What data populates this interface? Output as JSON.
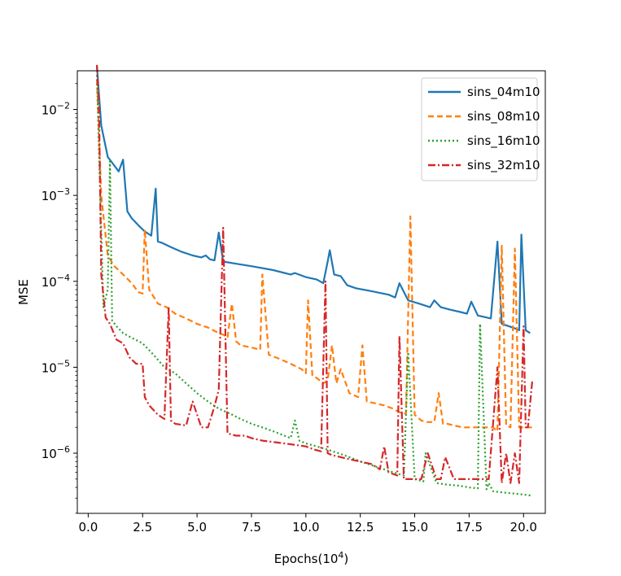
{
  "chart_data": {
    "type": "line",
    "title": "",
    "xlabel": "Epochs(10",
    "xlabel_sup": "4",
    "xlabel_close": ")",
    "ylabel": "MSE",
    "xlim": [
      -0.5,
      21.0
    ],
    "ylim_log10": [
      -6.7,
      -1.55
    ],
    "yscale": "log",
    "xticks": [
      0.0,
      2.5,
      5.0,
      7.5,
      10.0,
      12.5,
      15.0,
      17.5,
      20.0
    ],
    "xtick_labels": [
      "0.0",
      "2.5",
      "5.0",
      "7.5",
      "10.0",
      "12.5",
      "15.0",
      "17.5",
      "20.0"
    ],
    "ytick_exponents": [
      -6,
      -5,
      -4,
      -3,
      -2
    ],
    "ytick_base": "10",
    "ytick_labels": [
      "−6",
      "−5",
      "−4",
      "−3",
      "−2"
    ],
    "legend_position": "top-right",
    "series": [
      {
        "name": "sins_04m10",
        "color": "#1f77b4",
        "dash": "",
        "x": [
          0.4,
          0.6,
          0.9,
          1.1,
          1.4,
          1.6,
          1.8,
          2.0,
          2.3,
          2.6,
          2.9,
          3.1,
          3.2,
          3.4,
          3.8,
          4.3,
          4.8,
          5.2,
          5.4,
          5.6,
          5.8,
          6.0,
          6.2,
          6.8,
          7.5,
          8.5,
          9.3,
          9.5,
          10.0,
          10.5,
          10.8,
          11.0,
          11.1,
          11.3,
          11.6,
          11.9,
          12.3,
          13.0,
          13.8,
          14.1,
          14.3,
          14.7,
          15.2,
          15.7,
          15.9,
          16.2,
          16.6,
          17.1,
          17.4,
          17.6,
          17.9,
          18.5,
          18.8,
          19.0,
          19.5,
          19.8,
          19.9,
          20.1,
          20.3
        ],
        "values": [
          0.032,
          0.0065,
          0.0028,
          0.0024,
          0.0019,
          0.0026,
          0.00065,
          0.00054,
          0.00045,
          0.00038,
          0.00034,
          0.0012,
          0.00029,
          0.00028,
          0.00025,
          0.00022,
          0.0002,
          0.00019,
          0.0002,
          0.00018,
          0.000175,
          0.00037,
          0.00017,
          0.00016,
          0.00015,
          0.000135,
          0.00012,
          0.000125,
          0.000112,
          0.000105,
          9.5e-05,
          0.00017,
          0.00023,
          0.00012,
          0.000115,
          9e-05,
          8.3e-05,
          7.7e-05,
          7e-05,
          6.5e-05,
          9.5e-05,
          6e-05,
          5.5e-05,
          5e-05,
          6e-05,
          5e-05,
          4.7e-05,
          4.4e-05,
          4.2e-05,
          5.8e-05,
          4e-05,
          3.7e-05,
          0.00029,
          3.2e-05,
          2.9e-05,
          2.7e-05,
          0.00035,
          2.7e-05,
          2.5e-05
        ]
      },
      {
        "name": "sins_08m10",
        "color": "#ff7f0e",
        "dash": "7,4",
        "x": [
          0.4,
          0.6,
          0.9,
          1.2,
          1.6,
          2.0,
          2.3,
          2.5,
          2.6,
          2.8,
          3.2,
          3.6,
          4.0,
          4.5,
          5.0,
          5.5,
          6.0,
          6.2,
          6.4,
          6.6,
          6.8,
          7.0,
          7.5,
          7.9,
          8.0,
          8.3,
          8.8,
          9.3,
          9.8,
          10.0,
          10.1,
          10.3,
          10.5,
          10.8,
          11.0,
          11.2,
          11.4,
          11.6,
          12.0,
          12.4,
          12.6,
          12.8,
          13.2,
          13.6,
          14.0,
          14.3,
          14.6,
          14.8,
          15.0,
          15.3,
          15.6,
          15.9,
          16.1,
          16.3,
          16.5,
          16.8,
          17.2,
          17.7,
          18.0,
          18.4,
          18.6,
          18.8,
          19.0,
          19.2,
          19.4,
          19.6,
          19.8,
          20.0,
          20.2,
          20.4
        ],
        "values": [
          0.022,
          0.001,
          0.0002,
          0.00015,
          0.00012,
          9.5e-05,
          7.5e-05,
          7.2e-05,
          0.0004,
          8e-05,
          5.5e-05,
          5e-05,
          4.2e-05,
          3.7e-05,
          3.2e-05,
          2.9e-05,
          2.5e-05,
          2.4e-05,
          2.2e-05,
          5.5e-05,
          2e-05,
          1.8e-05,
          1.7e-05,
          1.6e-05,
          0.00012,
          1.4e-05,
          1.25e-05,
          1.1e-05,
          9.5e-06,
          8.5e-06,
          6e-05,
          8e-06,
          7.5e-06,
          6.5e-06,
          7e-06,
          1.8e-05,
          6.5e-06,
          9.5e-06,
          5e-06,
          4.5e-06,
          1.8e-05,
          4e-06,
          3.8e-06,
          3.6e-06,
          3.3e-06,
          3e-06,
          2.9e-06,
          0.00057,
          2.8e-06,
          2.4e-06,
          2.3e-06,
          2.3e-06,
          5e-06,
          2.2e-06,
          2.2e-06,
          2.1e-06,
          2e-06,
          2e-06,
          2e-06,
          2e-06,
          2e-06,
          1.8e-06,
          0.00026,
          2.1e-06,
          2e-06,
          0.00024,
          2e-06,
          2e-06,
          2e-06,
          2e-06
        ]
      },
      {
        "name": "sins_16m10",
        "color": "#2ca02c",
        "dash": "2,3",
        "x": [
          0.4,
          0.5,
          0.7,
          0.9,
          1.0,
          1.1,
          1.3,
          1.6,
          2.0,
          2.5,
          3.0,
          3.5,
          4.0,
          4.5,
          5.0,
          5.5,
          6.0,
          6.5,
          7.0,
          7.5,
          8.0,
          8.5,
          9.0,
          9.3,
          9.5,
          9.7,
          10.0,
          10.5,
          11.0,
          11.5,
          12.0,
          12.5,
          13.0,
          13.5,
          14.0,
          14.5,
          14.7,
          15.0,
          15.4,
          15.5,
          16.0,
          16.5,
          17.0,
          17.5,
          17.9,
          18.0,
          18.3,
          18.4,
          18.6,
          19.0,
          19.5,
          20.0,
          20.4
        ],
        "values": [
          0.025,
          0.003,
          5e-05,
          8e-05,
          0.0025,
          3.5e-05,
          3e-05,
          2.5e-05,
          2.2e-05,
          1.9e-05,
          1.4e-05,
          1e-05,
          8.5e-06,
          6.5e-06,
          5e-06,
          4e-06,
          3.3e-06,
          2.9e-06,
          2.5e-06,
          2.2e-06,
          2e-06,
          1.8e-06,
          1.6e-06,
          1.5e-06,
          2.4e-06,
          1.4e-06,
          1.3e-06,
          1.2e-06,
          1.1e-06,
          1e-06,
          9e-07,
          8e-07,
          7.3e-07,
          6.6e-07,
          6e-07,
          5.5e-07,
          1.5e-05,
          5e-07,
          4.7e-07,
          1e-06,
          4.5e-07,
          4.3e-07,
          4.2e-07,
          4e-07,
          3.9e-07,
          3.2e-05,
          3.8e-07,
          4.5e-07,
          3.6e-07,
          3.5e-07,
          3.4e-07,
          3.3e-07,
          3.2e-07
        ]
      },
      {
        "name": "sins_32m10",
        "color": "#d62728",
        "dash": "9,3,2,3",
        "x": [
          0.4,
          0.5,
          0.6,
          0.8,
          1.0,
          1.3,
          1.6,
          1.9,
          2.2,
          2.5,
          2.6,
          2.8,
          3.2,
          3.5,
          3.7,
          3.8,
          4.0,
          4.5,
          4.8,
          5.2,
          5.5,
          5.8,
          6.0,
          6.2,
          6.4,
          6.8,
          7.2,
          7.5,
          8.0,
          8.5,
          9.0,
          9.5,
          10.0,
          10.4,
          10.7,
          10.9,
          11.0,
          11.2,
          11.6,
          12.0,
          12.5,
          13.0,
          13.4,
          13.6,
          13.8,
          14.2,
          14.3,
          14.5,
          14.8,
          15.0,
          15.3,
          15.6,
          16.0,
          16.2,
          16.4,
          16.8,
          17.2,
          17.6,
          18.0,
          18.4,
          18.8,
          19.0,
          19.2,
          19.4,
          19.6,
          19.8,
          20.0,
          20.1,
          20.2,
          20.4
        ],
        "values": [
          0.033,
          0.01,
          0.00012,
          3.8e-05,
          3.2e-05,
          2.1e-05,
          1.9e-05,
          1.3e-05,
          1.1e-05,
          1.1e-05,
          4.5e-06,
          3.6e-06,
          2.8e-06,
          2.5e-06,
          5e-05,
          2.4e-06,
          2.2e-06,
          2.1e-06,
          4e-06,
          2e-06,
          2e-06,
          3.5e-06,
          5.5e-06,
          0.00042,
          1.7e-06,
          1.6e-06,
          1.6e-06,
          1.5e-06,
          1.4e-06,
          1.35e-06,
          1.3e-06,
          1.25e-06,
          1.2e-06,
          1.1e-06,
          1.05e-06,
          0.0001,
          1e-06,
          9.5e-07,
          9e-07,
          8.5e-07,
          8e-07,
          7.5e-07,
          6.5e-07,
          1.2e-06,
          6e-07,
          5.5e-07,
          2.3e-05,
          5e-07,
          5e-07,
          5e-07,
          5e-07,
          1e-06,
          5e-07,
          5e-07,
          9e-07,
          5e-07,
          5e-07,
          5e-07,
          5e-07,
          5e-07,
          1e-05,
          4.5e-07,
          1e-06,
          4.5e-07,
          1e-06,
          4.5e-07,
          3e-05,
          2e-06,
          2e-06,
          7e-06
        ]
      }
    ]
  }
}
